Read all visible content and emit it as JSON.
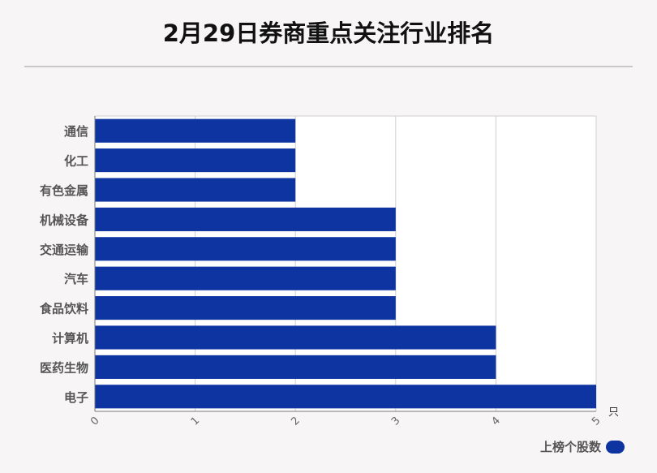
{
  "title": "2月29日券商重点关注行业排名",
  "legend": {
    "label": "上榜个股数"
  },
  "colors": {
    "bar": "#0d34a0",
    "grid": "#cfcfcf",
    "axis": "#777777",
    "label": "#555555"
  },
  "chart_data": {
    "type": "bar",
    "orientation": "horizontal",
    "categories": [
      "通信",
      "化工",
      "有色金属",
      "机械设备",
      "交通运输",
      "汽车",
      "食品饮料",
      "计算机",
      "医药生物",
      "电子"
    ],
    "series": [
      {
        "name": "上榜个股数",
        "values": [
          2,
          2,
          2,
          3,
          3,
          3,
          3,
          4,
          4,
          5
        ]
      }
    ],
    "x_ticks": [
      "0",
      "1",
      "2",
      "3",
      "4",
      "5"
    ],
    "x_unit": "只",
    "xlim": [
      0,
      5
    ],
    "grid": true,
    "legend_position": "bottom-right"
  }
}
